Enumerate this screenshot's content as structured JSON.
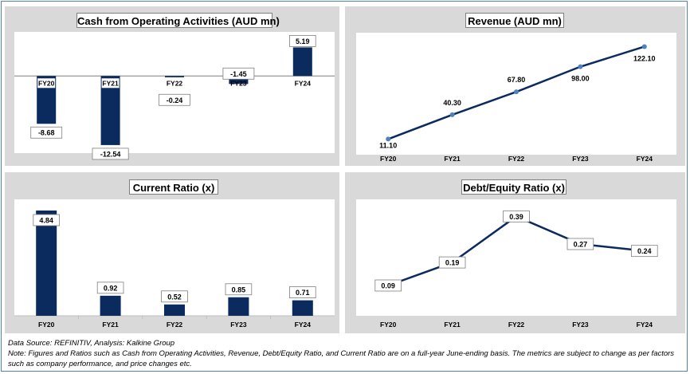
{
  "colors": {
    "bar": "#0b2a5e",
    "line": "#0b2a5e",
    "marker": "#4f81bd",
    "panel_bg": "#d9d9d9"
  },
  "chart_data": [
    {
      "id": "cash",
      "type": "bar",
      "title": "Cash from Operating Activities (AUD mn)",
      "categories": [
        "FY20",
        "FY21",
        "FY22",
        "FY23",
        "FY24"
      ],
      "values": [
        -8.68,
        -12.54,
        -0.24,
        -1.45,
        5.19
      ],
      "value_labels": [
        "-8.68",
        "-12.54",
        "-0.24",
        "-1.45",
        "5.19"
      ],
      "ylim": [
        -14,
        8
      ]
    },
    {
      "id": "revenue",
      "type": "line",
      "title": "Revenue (AUD mn)",
      "categories": [
        "FY20",
        "FY21",
        "FY22",
        "FY23",
        "FY24"
      ],
      "values": [
        11.1,
        40.3,
        67.8,
        98.0,
        122.1
      ],
      "value_labels": [
        "11.10",
        "40.30",
        "67.80",
        "98.00",
        "122.10"
      ],
      "ylim": [
        0,
        135
      ]
    },
    {
      "id": "current",
      "type": "bar",
      "title": "Current Ratio (x)",
      "categories": [
        "FY20",
        "FY21",
        "FY22",
        "FY23",
        "FY24"
      ],
      "values": [
        4.84,
        0.92,
        0.52,
        0.85,
        0.71
      ],
      "value_labels": [
        "4.84",
        "0.92",
        "0.52",
        "0.85",
        "0.71"
      ],
      "ylim": [
        0,
        6
      ]
    },
    {
      "id": "debt",
      "type": "line",
      "title": "Debt/Equity Ratio (x)",
      "categories": [
        "FY20",
        "FY21",
        "FY22",
        "FY23",
        "FY24"
      ],
      "values": [
        0.09,
        0.19,
        0.39,
        0.27,
        0.24
      ],
      "value_labels": [
        "0.09",
        "0.19",
        "0.39",
        "0.27",
        "0.24"
      ],
      "ylim": [
        0,
        0.45
      ]
    }
  ],
  "footer": {
    "source": "Data Source: REFINITIV, Analysis: Kalkine Group",
    "note": "Note: Figures and Ratios such as Cash from Operating Activities, Revenue, Debt/Equity Ratio, and Current Ratio  are on a full-year June-ending basis. The metrics are subject to change as per factors such as company performance, and price changes etc."
  }
}
